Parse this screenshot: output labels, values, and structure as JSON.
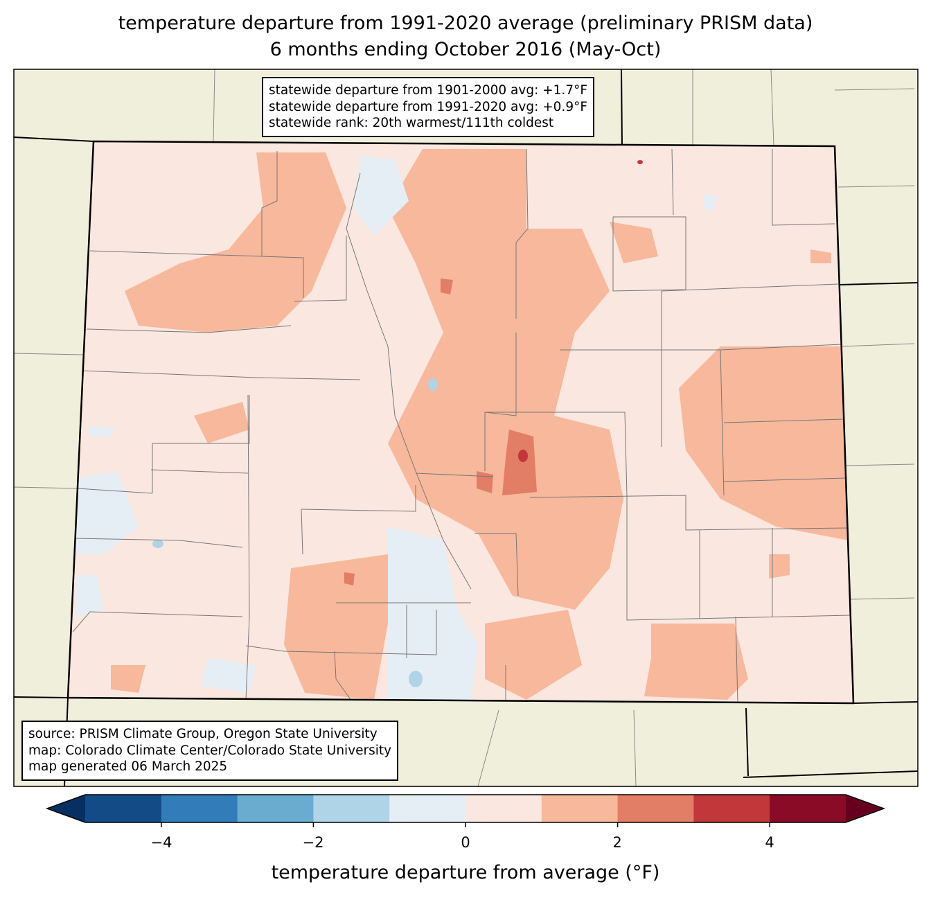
{
  "title": {
    "line1": "temperature departure from 1991-2020 average (preliminary PRISM data)",
    "line2": "6 months ending October 2016 (May-Oct)"
  },
  "stats": {
    "line1": "statewide departure from 1901-2000 avg: +1.7°F",
    "line2": "statewide departure from 1991-2020 avg: +0.9°F",
    "line3": "statewide rank: 20th warmest/111th coldest"
  },
  "source": {
    "line1": "source: PRISM Climate Group, Oregon State University",
    "line2": "map: Colorado Climate Center/Colorado State University",
    "line3": "map generated 06 March 2025"
  },
  "colorbar": {
    "label": "temperature departure from average (°F)",
    "ticks": [
      "−4",
      "−2",
      "0",
      "2",
      "4"
    ],
    "bounds": [
      -5,
      5
    ],
    "colors": [
      "#053061",
      "#134b87",
      "#327cb9",
      "#6aacd0",
      "#b0d4e7",
      "#e5eef4",
      "#fae7df",
      "#f7b89c",
      "#e27e65",
      "#c1373a",
      "#8a0b25",
      "#67001f"
    ]
  },
  "map": {
    "land_color": "#f0efdc",
    "base_color": "#fae7df",
    "warm_color": "#f7b89c",
    "hot_color": "#e27e65",
    "cool_color": "#e5eef4"
  }
}
